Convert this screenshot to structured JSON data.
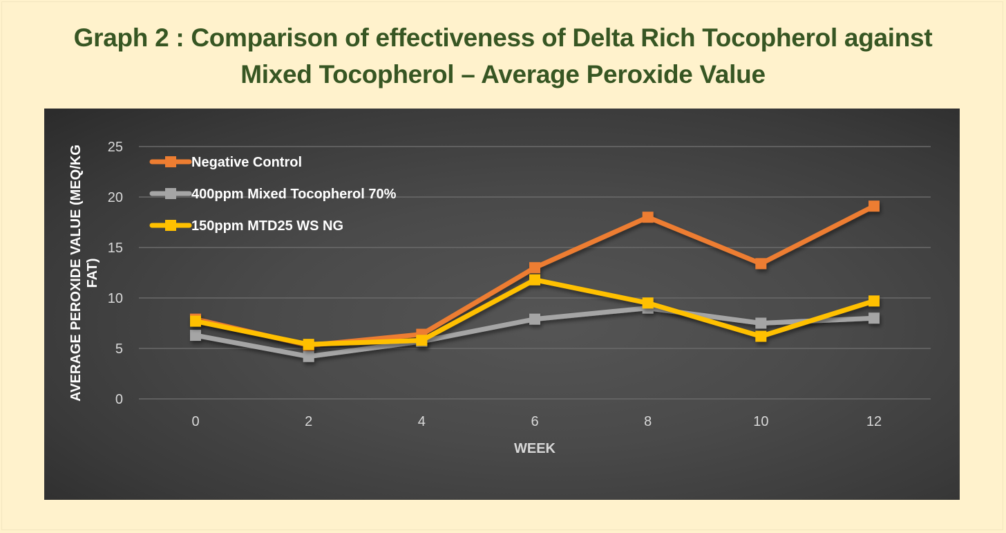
{
  "page": {
    "title_line1": "Graph 2 : Comparison of effectiveness of Delta Rich Tocopherol against",
    "title_line2": "Mixed Tocopherol – Average Peroxide Value",
    "background_color": "#fff2cc",
    "title_color": "#375623"
  },
  "chart_data": {
    "type": "line",
    "title": "Graph 2 : Comparison of effectiveness of Delta Rich Tocopherol against Mixed Tocopherol – Average Peroxide Value",
    "xlabel": "WEEK",
    "ylabel_lines": [
      "AVERAGE PEROXIDE VALUE (MEQ/KG",
      "FAT)"
    ],
    "ylabel": "AVERAGE PEROXIDE VALUE (MEQ/KG FAT)",
    "x": [
      0,
      2,
      4,
      6,
      8,
      10,
      12
    ],
    "x_tick_labels": [
      "0",
      "2",
      "4",
      "6",
      "8",
      "10",
      "12"
    ],
    "y_ticks": [
      0,
      5,
      10,
      15,
      20,
      25
    ],
    "y_tick_labels": [
      "0",
      "5",
      "10",
      "15",
      "20",
      "25"
    ],
    "ylim": [
      0,
      25
    ],
    "grid": true,
    "legend_position": "top-left",
    "series": [
      {
        "name": "Negative Control",
        "color": "#ed7d31",
        "marker": "square",
        "values": [
          7.9,
          5.3,
          6.4,
          13.0,
          18.0,
          13.4,
          19.1
        ]
      },
      {
        "name": "400ppm Mixed Tocopherol 70%",
        "color": "#a5a5a5",
        "marker": "square",
        "values": [
          6.3,
          4.2,
          5.7,
          7.9,
          9.0,
          7.5,
          8.0
        ]
      },
      {
        "name": "150ppm MTD25 WS NG",
        "color": "#ffc000",
        "marker": "square",
        "values": [
          7.7,
          5.4,
          5.8,
          11.8,
          9.5,
          6.2,
          9.7
        ]
      }
    ]
  }
}
